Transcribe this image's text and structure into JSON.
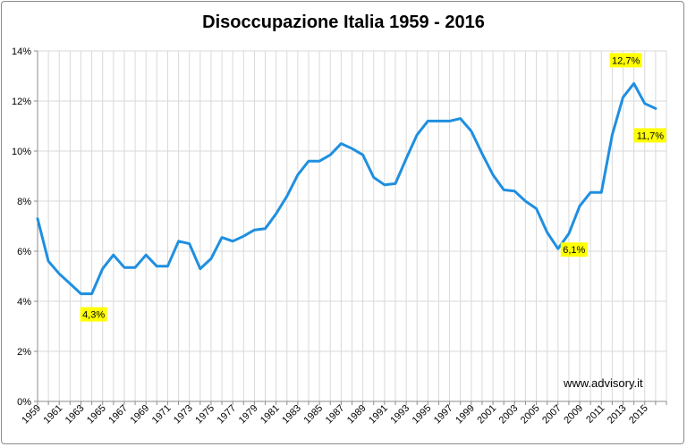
{
  "chart_data": {
    "type": "line",
    "title": "Disoccupazione Italia 1959 - 2016",
    "xlabel": "",
    "ylabel": "",
    "ylim": [
      0,
      14
    ],
    "yticks": [
      "0%",
      "2%",
      "4%",
      "6%",
      "8%",
      "10%",
      "12%",
      "14%"
    ],
    "x_tick_labels": [
      "1959",
      "1961",
      "1963",
      "1965",
      "1967",
      "1969",
      "1971",
      "1973",
      "1975",
      "1977",
      "1979",
      "1981",
      "1983",
      "1985",
      "1987",
      "1989",
      "1991",
      "1993",
      "1995",
      "1997",
      "1999",
      "2001",
      "2003",
      "2005",
      "2007",
      "2009",
      "2011",
      "2013",
      "2015"
    ],
    "grid": true,
    "legend": "none",
    "series_color": "#1f8fe0",
    "series": [
      {
        "x": [
          1959,
          1960,
          1961,
          1962,
          1963,
          1964,
          1965,
          1966,
          1967,
          1968,
          1969,
          1970,
          1971,
          1972,
          1973,
          1974,
          1975,
          1976,
          1977,
          1978,
          1979,
          1980,
          1981,
          1982,
          1983,
          1984,
          1985,
          1986,
          1987,
          1988,
          1989,
          1990,
          1991,
          1992,
          1993,
          1994,
          1995,
          1996,
          1997,
          1998,
          1999,
          2000,
          2001,
          2002,
          2003,
          2004,
          2005,
          2006,
          2007,
          2008,
          2009,
          2010,
          2011,
          2012,
          2013,
          2014,
          2015,
          2016
        ],
        "values": [
          7.3,
          5.6,
          5.1,
          4.7,
          4.3,
          4.3,
          5.3,
          5.85,
          5.35,
          5.35,
          5.85,
          5.4,
          5.4,
          6.4,
          6.3,
          5.3,
          5.7,
          6.55,
          6.4,
          6.6,
          6.85,
          6.9,
          7.5,
          8.2,
          9.05,
          9.6,
          9.6,
          9.85,
          10.3,
          10.1,
          9.85,
          8.95,
          8.65,
          8.7,
          9.7,
          10.65,
          11.2,
          11.2,
          11.2,
          11.3,
          10.8,
          9.9,
          9.05,
          8.45,
          8.4,
          8.0,
          7.7,
          6.75,
          6.1,
          6.7,
          7.8,
          8.35,
          8.35,
          10.65,
          12.15,
          12.7,
          11.9,
          11.7
        ]
      }
    ],
    "annotations": [
      {
        "year": 1964,
        "value": 4.3,
        "label": "4,3%"
      },
      {
        "year": 2007,
        "value": 6.1,
        "label": "6,1%"
      },
      {
        "year": 2014,
        "value": 12.7,
        "label": "12,7%"
      },
      {
        "year": 2016,
        "value": 11.7,
        "label": "11,7%"
      }
    ],
    "watermark": "www.advisory.it"
  }
}
